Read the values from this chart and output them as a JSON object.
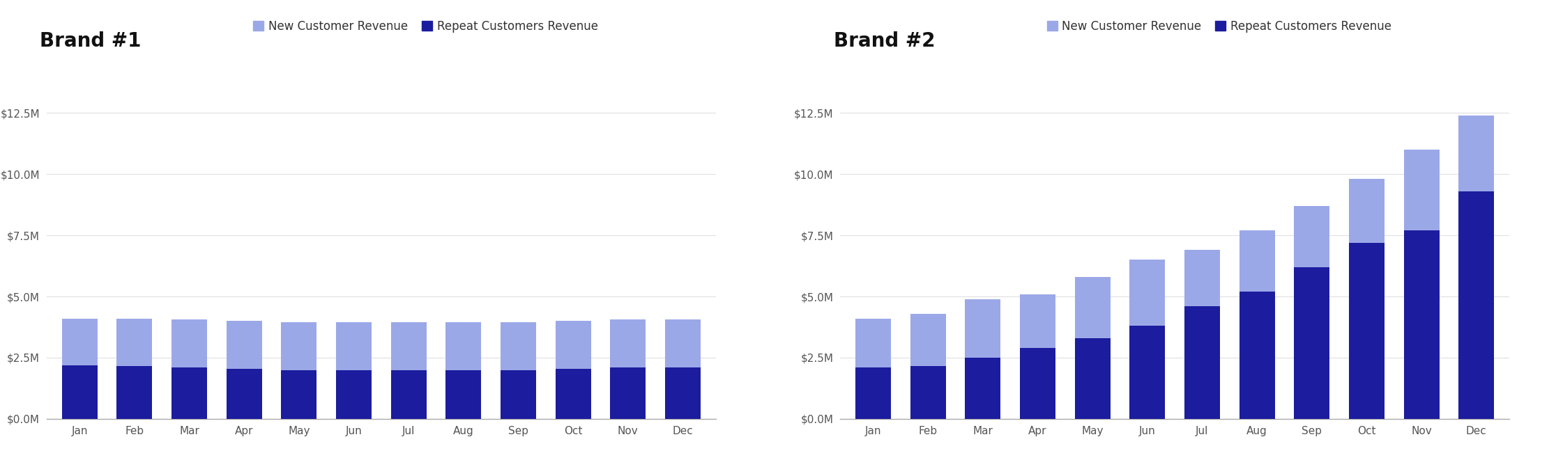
{
  "months": [
    "Jan",
    "Feb",
    "Mar",
    "Apr",
    "May",
    "Jun",
    "Jul",
    "Aug",
    "Sep",
    "Oct",
    "Nov",
    "Dec"
  ],
  "brand1": {
    "title": "Brand #1",
    "repeat": [
      2200000,
      2150000,
      2100000,
      2050000,
      2000000,
      2000000,
      2000000,
      2000000,
      2000000,
      2050000,
      2100000,
      2100000
    ],
    "new": [
      1900000,
      1950000,
      1950000,
      1950000,
      1950000,
      1950000,
      1950000,
      1950000,
      1950000,
      1950000,
      1950000,
      1950000
    ]
  },
  "brand2": {
    "title": "Brand #2",
    "repeat": [
      2100000,
      2150000,
      2500000,
      2900000,
      3300000,
      3800000,
      4600000,
      5200000,
      6200000,
      7200000,
      7700000,
      9300000
    ],
    "new": [
      2000000,
      2150000,
      2400000,
      2200000,
      2500000,
      2700000,
      2300000,
      2500000,
      2500000,
      2600000,
      3300000,
      3100000
    ]
  },
  "color_repeat": "#1c1c9e",
  "color_new": "#9ba8e8",
  "legend_new": "New Customer Revenue",
  "legend_repeat": "Repeat Customers Revenue",
  "ylim": [
    0,
    14000000
  ],
  "yticks": [
    0,
    2500000,
    5000000,
    7500000,
    10000000,
    12500000
  ],
  "background_color": "#ffffff",
  "title_fontsize": 20,
  "tick_fontsize": 11,
  "legend_fontsize": 12,
  "grid_color": "#e0e0e0"
}
